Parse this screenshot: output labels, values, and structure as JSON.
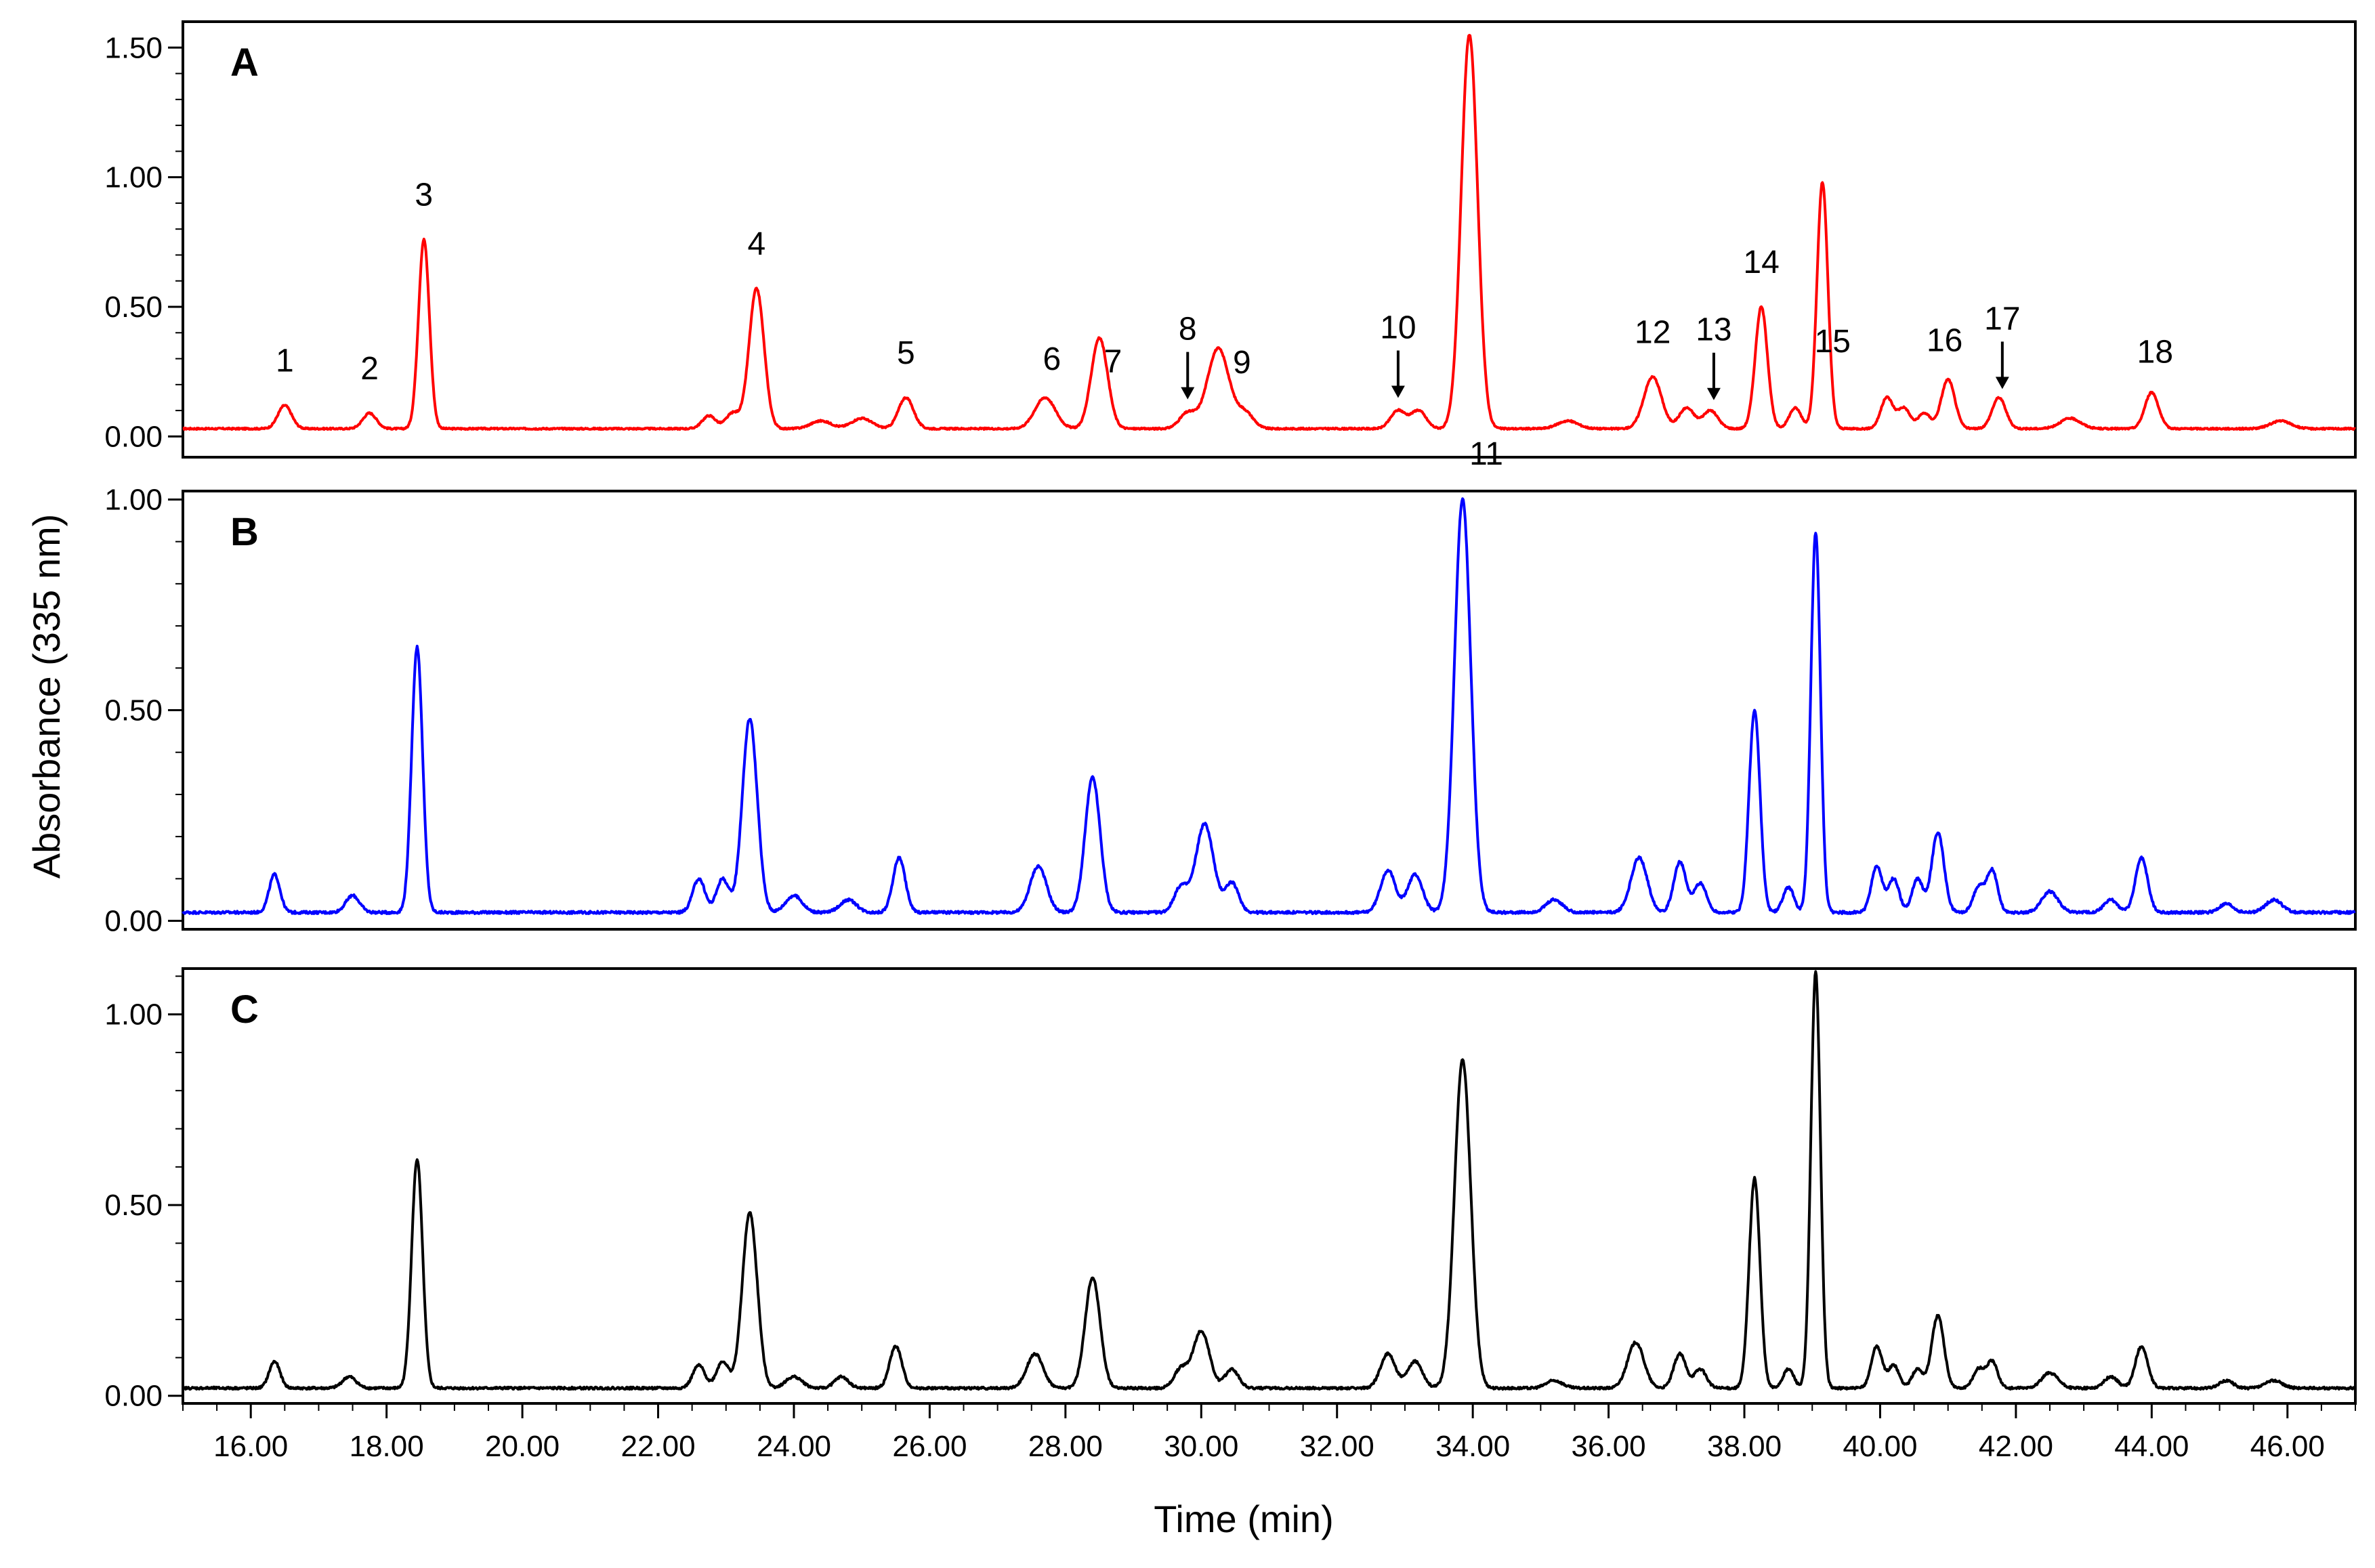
{
  "chart_data": {
    "type": "line",
    "xlabel": "Time (min)",
    "ylabel": "Absorbance (335 nm)",
    "xlim": [
      15.0,
      47.0
    ],
    "x_ticks": [
      "16.00",
      "18.00",
      "20.00",
      "22.00",
      "24.00",
      "26.00",
      "28.00",
      "30.00",
      "32.00",
      "34.00",
      "36.00",
      "38.00",
      "40.00",
      "42.00",
      "44.00",
      "46.00"
    ],
    "grid": false,
    "panels": [
      {
        "label": "A",
        "color": "#ff0000",
        "ylim": [
          -0.08,
          1.6
        ],
        "y_ticks": [
          {
            "value": 0.0,
            "label": "0.00"
          },
          {
            "value": 0.5,
            "label": "0.50"
          },
          {
            "value": 1.0,
            "label": "1.00"
          },
          {
            "value": 1.5,
            "label": "1.50"
          }
        ],
        "baseline": 0.03,
        "peaks": [
          {
            "t": 16.5,
            "h": 0.09,
            "w": 0.1
          },
          {
            "t": 17.75,
            "h": 0.06,
            "w": 0.1
          },
          {
            "t": 18.55,
            "h": 0.73,
            "w": 0.08
          },
          {
            "t": 22.75,
            "h": 0.05,
            "w": 0.1
          },
          {
            "t": 23.1,
            "h": 0.06,
            "w": 0.1
          },
          {
            "t": 23.45,
            "h": 0.54,
            "w": 0.11
          },
          {
            "t": 24.4,
            "h": 0.03,
            "w": 0.15
          },
          {
            "t": 25.0,
            "h": 0.04,
            "w": 0.15
          },
          {
            "t": 25.65,
            "h": 0.12,
            "w": 0.11
          },
          {
            "t": 27.7,
            "h": 0.12,
            "w": 0.15
          },
          {
            "t": 28.5,
            "h": 0.35,
            "w": 0.12
          },
          {
            "t": 29.8,
            "h": 0.06,
            "w": 0.12
          },
          {
            "t": 30.25,
            "h": 0.31,
            "w": 0.16
          },
          {
            "t": 30.65,
            "h": 0.06,
            "w": 0.12
          },
          {
            "t": 32.9,
            "h": 0.07,
            "w": 0.11
          },
          {
            "t": 33.2,
            "h": 0.07,
            "w": 0.11
          },
          {
            "t": 33.95,
            "h": 1.52,
            "w": 0.12
          },
          {
            "t": 35.4,
            "h": 0.03,
            "w": 0.15
          },
          {
            "t": 36.65,
            "h": 0.2,
            "w": 0.13
          },
          {
            "t": 37.15,
            "h": 0.08,
            "w": 0.11
          },
          {
            "t": 37.5,
            "h": 0.07,
            "w": 0.11
          },
          {
            "t": 38.25,
            "h": 0.47,
            "w": 0.09
          },
          {
            "t": 38.75,
            "h": 0.08,
            "w": 0.09
          },
          {
            "t": 39.15,
            "h": 0.95,
            "w": 0.08
          },
          {
            "t": 40.1,
            "h": 0.12,
            "w": 0.09
          },
          {
            "t": 40.35,
            "h": 0.08,
            "w": 0.09
          },
          {
            "t": 40.65,
            "h": 0.06,
            "w": 0.09
          },
          {
            "t": 41.0,
            "h": 0.19,
            "w": 0.1
          },
          {
            "t": 41.75,
            "h": 0.12,
            "w": 0.1
          },
          {
            "t": 42.8,
            "h": 0.04,
            "w": 0.15
          },
          {
            "t": 44.0,
            "h": 0.14,
            "w": 0.1
          },
          {
            "t": 45.9,
            "h": 0.03,
            "w": 0.15
          }
        ],
        "annotations": [
          {
            "text": "1",
            "x": 16.5
          },
          {
            "text": "2",
            "x": 17.75
          },
          {
            "text": "3",
            "x": 18.55
          },
          {
            "text": "4",
            "x": 23.45
          },
          {
            "text": "5",
            "x": 25.65
          },
          {
            "text": "6",
            "x": 27.8
          },
          {
            "text": "7",
            "x": 28.7
          },
          {
            "text": "8",
            "x": 29.8,
            "arrow": true
          },
          {
            "text": "9",
            "x": 30.6
          },
          {
            "text": "10",
            "x": 32.9,
            "arrow": true
          },
          {
            "text": "11",
            "x": 33.4
          },
          {
            "text": "12",
            "x": 36.65
          },
          {
            "text": "13",
            "x": 37.55,
            "arrow": true
          },
          {
            "text": "14",
            "x": 38.25
          },
          {
            "text": "15",
            "x": 39.3
          },
          {
            "text": "16",
            "x": 40.95
          },
          {
            "text": "17",
            "x": 41.8,
            "arrow": true
          },
          {
            "text": "18",
            "x": 44.05
          }
        ]
      },
      {
        "label": "B",
        "color": "#0000ff",
        "ylim": [
          -0.02,
          1.02
        ],
        "y_ticks": [
          {
            "value": 0.0,
            "label": "0.00"
          },
          {
            "value": 0.5,
            "label": "0.50"
          },
          {
            "value": 1.0,
            "label": "1.00"
          }
        ],
        "baseline": 0.02,
        "peaks": [
          {
            "t": 16.35,
            "h": 0.09,
            "w": 0.08
          },
          {
            "t": 17.5,
            "h": 0.04,
            "w": 0.1
          },
          {
            "t": 18.45,
            "h": 0.63,
            "w": 0.08
          },
          {
            "t": 22.6,
            "h": 0.08,
            "w": 0.09
          },
          {
            "t": 22.95,
            "h": 0.08,
            "w": 0.09
          },
          {
            "t": 23.35,
            "h": 0.46,
            "w": 0.11
          },
          {
            "t": 24.0,
            "h": 0.04,
            "w": 0.12
          },
          {
            "t": 24.8,
            "h": 0.03,
            "w": 0.12
          },
          {
            "t": 25.55,
            "h": 0.13,
            "w": 0.09
          },
          {
            "t": 27.6,
            "h": 0.11,
            "w": 0.12
          },
          {
            "t": 28.4,
            "h": 0.32,
            "w": 0.11
          },
          {
            "t": 29.7,
            "h": 0.06,
            "w": 0.1
          },
          {
            "t": 30.05,
            "h": 0.21,
            "w": 0.13
          },
          {
            "t": 30.45,
            "h": 0.07,
            "w": 0.1
          },
          {
            "t": 32.75,
            "h": 0.1,
            "w": 0.11
          },
          {
            "t": 33.15,
            "h": 0.09,
            "w": 0.11
          },
          {
            "t": 33.85,
            "h": 0.98,
            "w": 0.12
          },
          {
            "t": 35.2,
            "h": 0.03,
            "w": 0.12
          },
          {
            "t": 36.45,
            "h": 0.13,
            "w": 0.12
          },
          {
            "t": 37.05,
            "h": 0.12,
            "w": 0.09
          },
          {
            "t": 37.35,
            "h": 0.07,
            "w": 0.09
          },
          {
            "t": 38.15,
            "h": 0.48,
            "w": 0.08
          },
          {
            "t": 38.65,
            "h": 0.06,
            "w": 0.08
          },
          {
            "t": 39.05,
            "h": 0.9,
            "w": 0.07
          },
          {
            "t": 39.95,
            "h": 0.11,
            "w": 0.08
          },
          {
            "t": 40.2,
            "h": 0.08,
            "w": 0.08
          },
          {
            "t": 40.55,
            "h": 0.08,
            "w": 0.08
          },
          {
            "t": 40.85,
            "h": 0.19,
            "w": 0.09
          },
          {
            "t": 41.45,
            "h": 0.06,
            "w": 0.08
          },
          {
            "t": 41.65,
            "h": 0.1,
            "w": 0.08
          },
          {
            "t": 42.5,
            "h": 0.05,
            "w": 0.12
          },
          {
            "t": 43.4,
            "h": 0.03,
            "w": 0.1
          },
          {
            "t": 43.85,
            "h": 0.13,
            "w": 0.09
          },
          {
            "t": 45.1,
            "h": 0.02,
            "w": 0.1
          },
          {
            "t": 45.8,
            "h": 0.03,
            "w": 0.12
          }
        ],
        "annotations": []
      },
      {
        "label": "C",
        "color": "#000000",
        "ylim": [
          -0.02,
          1.12
        ],
        "y_ticks": [
          {
            "value": 0.0,
            "label": "0.00"
          },
          {
            "value": 0.5,
            "label": "0.50"
          },
          {
            "value": 1.0,
            "label": "1.00"
          }
        ],
        "baseline": 0.02,
        "peaks": [
          {
            "t": 16.35,
            "h": 0.07,
            "w": 0.08
          },
          {
            "t": 17.45,
            "h": 0.03,
            "w": 0.1
          },
          {
            "t": 18.45,
            "h": 0.6,
            "w": 0.08
          },
          {
            "t": 22.6,
            "h": 0.06,
            "w": 0.09
          },
          {
            "t": 22.95,
            "h": 0.07,
            "w": 0.09
          },
          {
            "t": 23.35,
            "h": 0.46,
            "w": 0.11
          },
          {
            "t": 24.0,
            "h": 0.03,
            "w": 0.12
          },
          {
            "t": 24.7,
            "h": 0.03,
            "w": 0.1
          },
          {
            "t": 25.5,
            "h": 0.11,
            "w": 0.09
          },
          {
            "t": 27.55,
            "h": 0.09,
            "w": 0.12
          },
          {
            "t": 28.4,
            "h": 0.29,
            "w": 0.11
          },
          {
            "t": 29.7,
            "h": 0.05,
            "w": 0.1
          },
          {
            "t": 30.0,
            "h": 0.15,
            "w": 0.12
          },
          {
            "t": 30.45,
            "h": 0.05,
            "w": 0.1
          },
          {
            "t": 32.75,
            "h": 0.09,
            "w": 0.11
          },
          {
            "t": 33.15,
            "h": 0.07,
            "w": 0.11
          },
          {
            "t": 33.85,
            "h": 0.86,
            "w": 0.12
          },
          {
            "t": 35.2,
            "h": 0.02,
            "w": 0.12
          },
          {
            "t": 36.4,
            "h": 0.12,
            "w": 0.12
          },
          {
            "t": 37.05,
            "h": 0.09,
            "w": 0.09
          },
          {
            "t": 37.35,
            "h": 0.05,
            "w": 0.09
          },
          {
            "t": 38.15,
            "h": 0.55,
            "w": 0.08
          },
          {
            "t": 38.65,
            "h": 0.05,
            "w": 0.08
          },
          {
            "t": 39.05,
            "h": 1.09,
            "w": 0.07
          },
          {
            "t": 39.95,
            "h": 0.11,
            "w": 0.08
          },
          {
            "t": 40.2,
            "h": 0.06,
            "w": 0.08
          },
          {
            "t": 40.55,
            "h": 0.05,
            "w": 0.08
          },
          {
            "t": 40.85,
            "h": 0.19,
            "w": 0.09
          },
          {
            "t": 41.45,
            "h": 0.05,
            "w": 0.08
          },
          {
            "t": 41.65,
            "h": 0.07,
            "w": 0.08
          },
          {
            "t": 42.5,
            "h": 0.04,
            "w": 0.12
          },
          {
            "t": 43.4,
            "h": 0.03,
            "w": 0.1
          },
          {
            "t": 43.85,
            "h": 0.11,
            "w": 0.09
          },
          {
            "t": 45.1,
            "h": 0.02,
            "w": 0.1
          },
          {
            "t": 45.8,
            "h": 0.02,
            "w": 0.12
          }
        ],
        "annotations": []
      }
    ]
  }
}
